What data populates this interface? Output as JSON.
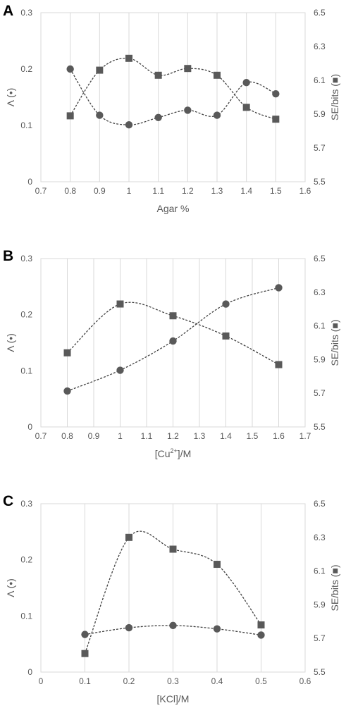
{
  "chart_data": [
    {
      "panel": "A",
      "type": "line",
      "xlabel": "Agar %",
      "ylabel": "Λ (•)",
      "y2label": "SE/bits (■)",
      "xlim": [
        0.7,
        1.6
      ],
      "xticks": [
        "0.7",
        "0.8",
        "0.9",
        "1",
        "1.1",
        "1.2",
        "1.3",
        "1.4",
        "1.5",
        "1.6"
      ],
      "ylim": [
        0,
        0.3
      ],
      "yticks": [
        "0",
        "0.1",
        "0.2",
        "0.3"
      ],
      "y2lim": [
        5.5,
        6.5
      ],
      "y2ticks": [
        "5.5",
        "5.7",
        "5.9",
        "6.1",
        "6.3",
        "6.5"
      ],
      "grid": "vertical",
      "series": [
        {
          "marker": "circle",
          "axis": "left",
          "x": [
            0.8,
            0.9,
            1.0,
            1.1,
            1.2,
            1.3,
            1.4,
            1.5
          ],
          "y": [
            0.2,
            0.118,
            0.101,
            0.114,
            0.127,
            0.118,
            0.176,
            0.156
          ]
        },
        {
          "marker": "square",
          "axis": "right",
          "x": [
            0.8,
            0.9,
            1.0,
            1.1,
            1.2,
            1.3,
            1.4,
            1.5
          ],
          "y": [
            5.89,
            6.16,
            6.23,
            6.13,
            6.17,
            6.13,
            5.94,
            5.87
          ]
        }
      ]
    },
    {
      "panel": "B",
      "type": "line",
      "xlabel": "[Cu2+]/M",
      "xlabel_parts": [
        "[Cu",
        "2+",
        "]/M"
      ],
      "ylabel": "Λ (•)",
      "y2label": "SE/bits (■)",
      "xlim": [
        0.7,
        1.7
      ],
      "xticks": [
        "0.7",
        "0.8",
        "0.9",
        "1",
        "1.1",
        "1.2",
        "1.3",
        "1.4",
        "1.5",
        "1.6",
        "1.7"
      ],
      "ylim": [
        0,
        0.3
      ],
      "yticks": [
        "0",
        "0.1",
        "0.2",
        "0.3"
      ],
      "y2lim": [
        5.5,
        6.5
      ],
      "y2ticks": [
        "5.5",
        "5.7",
        "5.9",
        "6.1",
        "6.3",
        "6.5"
      ],
      "grid": "vertical",
      "series": [
        {
          "marker": "circle",
          "axis": "left",
          "x": [
            0.8,
            1.0,
            1.2,
            1.4,
            1.6
          ],
          "y": [
            0.064,
            0.101,
            0.153,
            0.219,
            0.248
          ]
        },
        {
          "marker": "square",
          "axis": "right",
          "x": [
            0.8,
            1.0,
            1.2,
            1.4,
            1.6
          ],
          "y": [
            5.94,
            6.23,
            6.16,
            6.04,
            5.87
          ]
        }
      ]
    },
    {
      "panel": "C",
      "type": "line",
      "xlabel": "[KCl]/M",
      "ylabel": "Λ (•)",
      "y2label": "SE/bits (■)",
      "xlim": [
        0,
        0.6
      ],
      "xticks": [
        "0",
        "0.1",
        "0.2",
        "0.3",
        "0.4",
        "0.5",
        "0.6"
      ],
      "ylim": [
        0,
        0.3
      ],
      "yticks": [
        "0",
        "0.1",
        "0.2",
        "0.3"
      ],
      "y2lim": [
        5.5,
        6.5
      ],
      "y2ticks": [
        "5.5",
        "5.7",
        "5.9",
        "6.1",
        "6.3",
        "6.5"
      ],
      "grid": "vertical",
      "series": [
        {
          "marker": "circle",
          "axis": "left",
          "x": [
            0.1,
            0.2,
            0.3,
            0.4,
            0.5
          ],
          "y": [
            0.067,
            0.079,
            0.083,
            0.077,
            0.066
          ]
        },
        {
          "marker": "square",
          "axis": "right",
          "x": [
            0.1,
            0.2,
            0.3,
            0.4,
            0.5
          ],
          "y": [
            5.61,
            6.3,
            6.23,
            6.14,
            5.78
          ]
        }
      ]
    }
  ]
}
